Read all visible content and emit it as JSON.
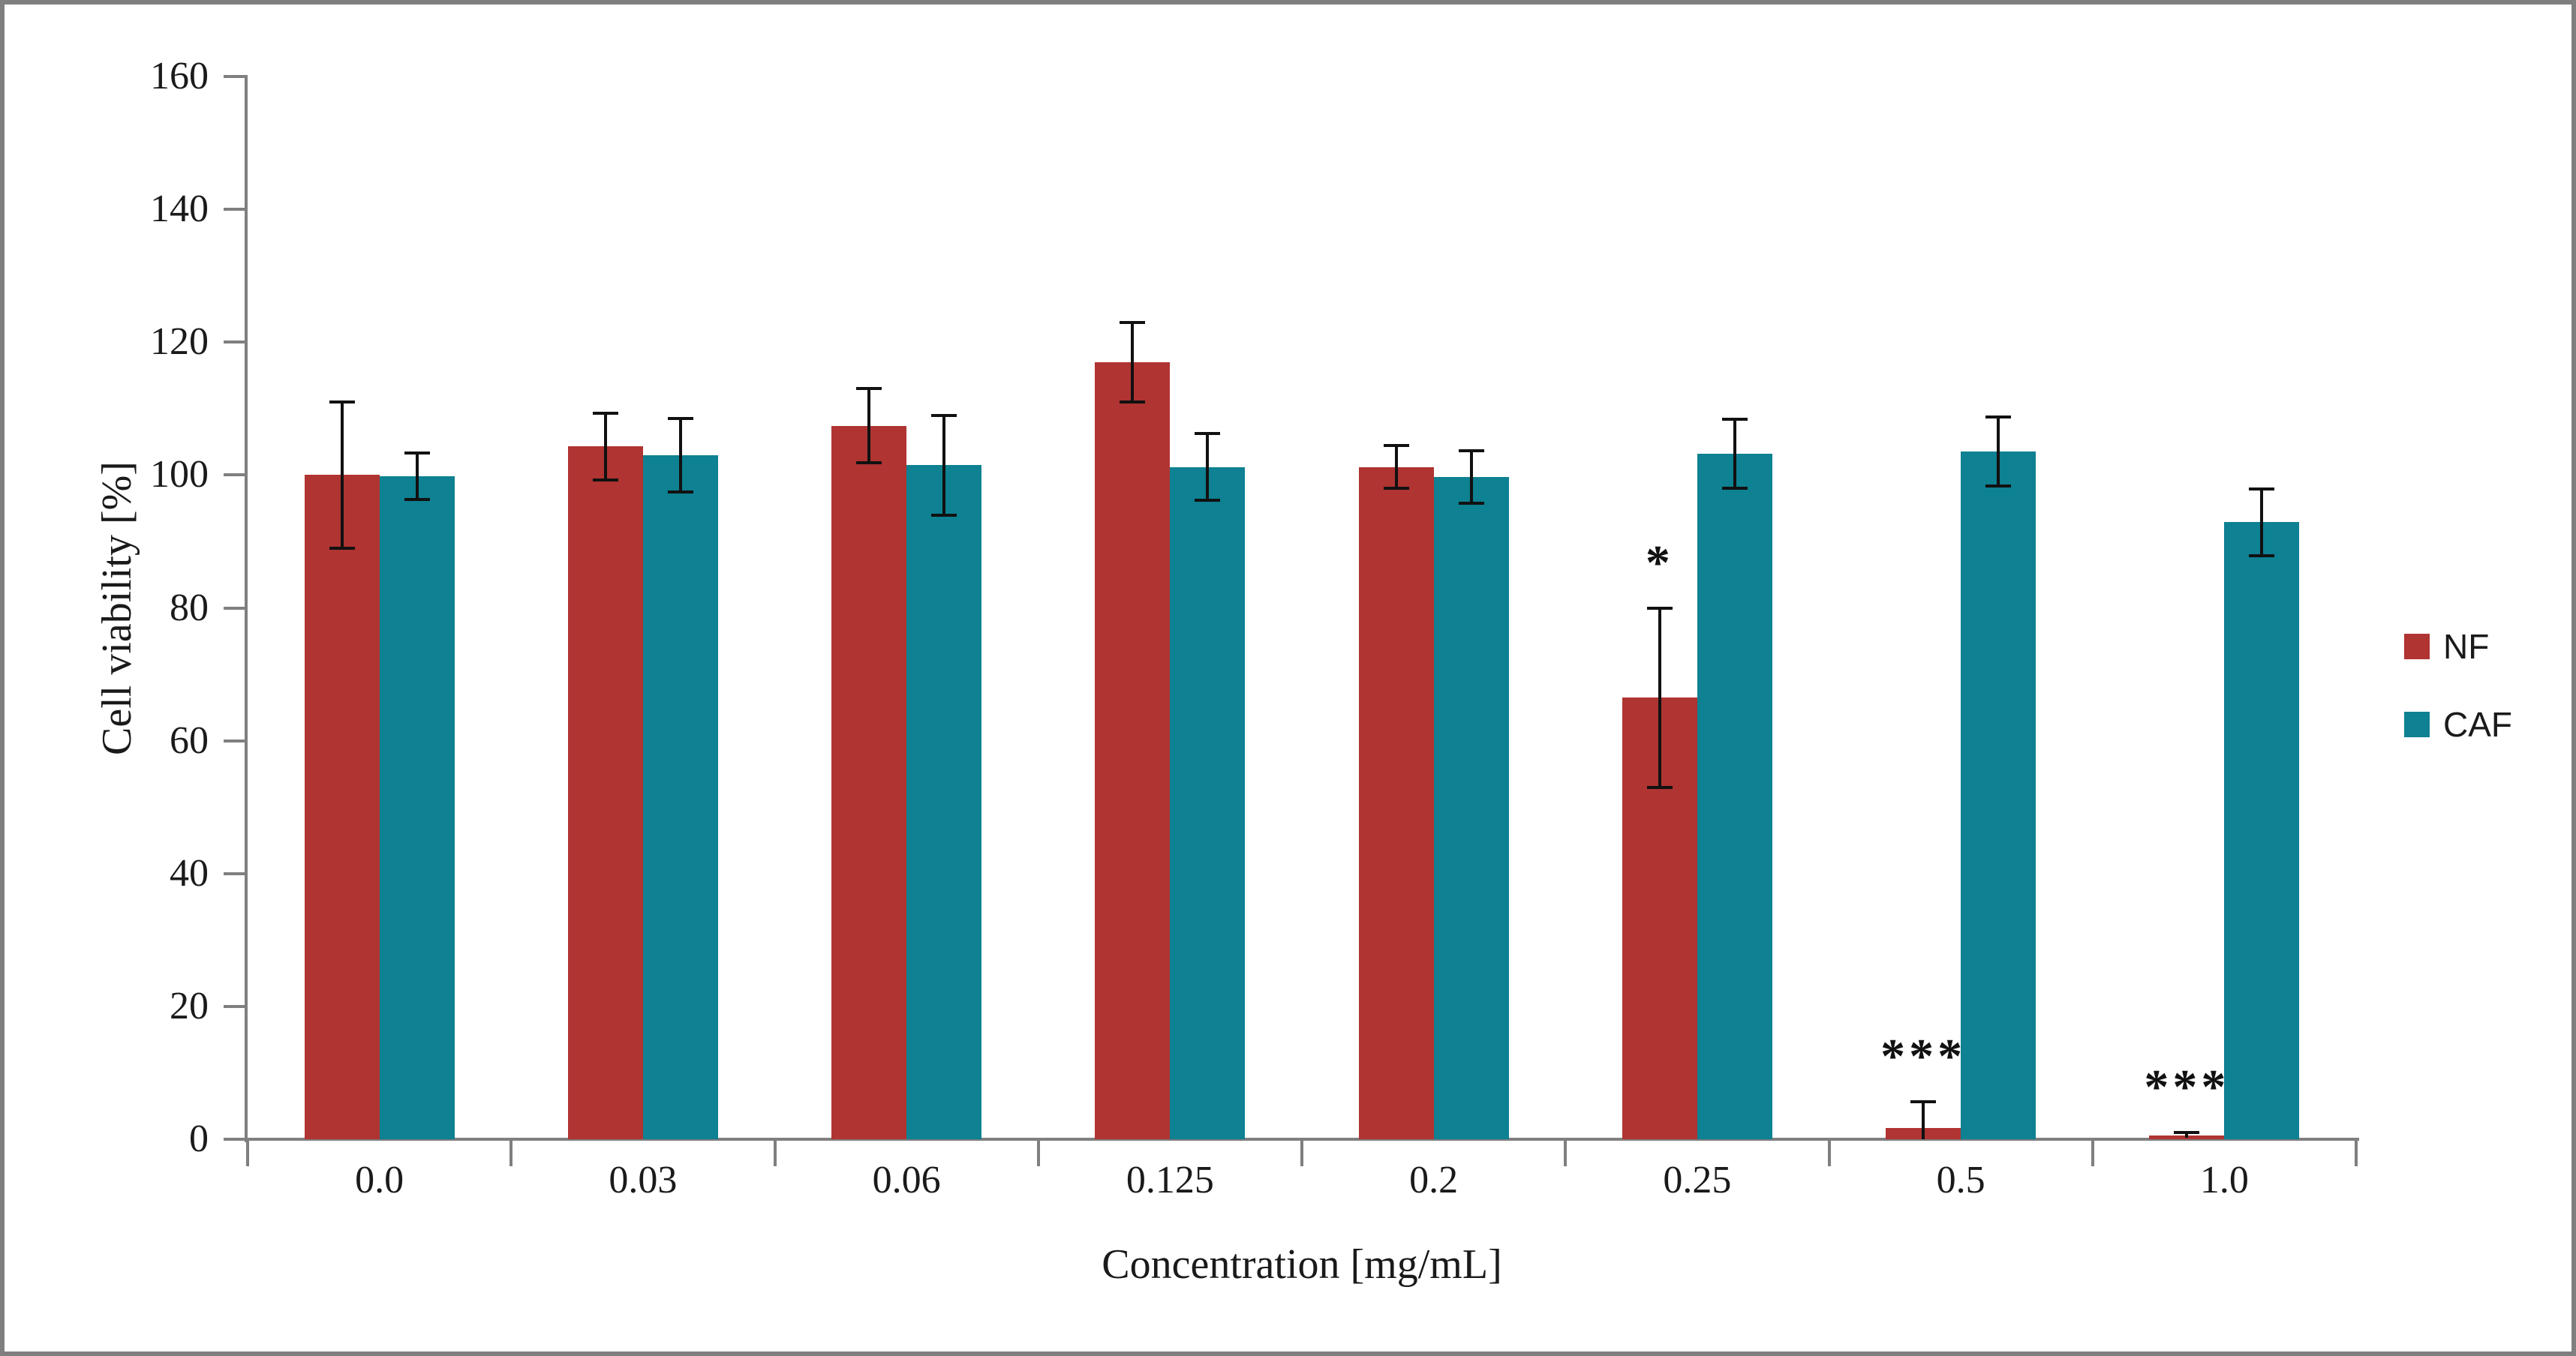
{
  "chart_data": {
    "type": "bar",
    "title": "",
    "xlabel": "Concentration [mg/mL]",
    "ylabel": "Cell viability [%]",
    "ylim": [
      0,
      160
    ],
    "yticks": [
      0,
      20,
      40,
      60,
      80,
      100,
      120,
      140,
      160
    ],
    "grid": false,
    "legend_position": "right",
    "categories": [
      "0.0",
      "0.03",
      "0.06",
      "0.125",
      "0.2",
      "0.25",
      "0.5",
      "1.0"
    ],
    "series": [
      {
        "name": "NF",
        "color": "#b03432",
        "values": [
          100.0,
          104.3,
          107.4,
          117.0,
          101.2,
          66.5,
          1.7,
          0.6
        ],
        "errors": [
          11.0,
          5.0,
          5.6,
          6.0,
          3.2,
          13.5,
          3.9,
          0.4
        ],
        "significance": [
          "",
          "",
          "",
          "",
          "",
          "*",
          "***",
          "***"
        ]
      },
      {
        "name": "CAF",
        "color": "#0e8192",
        "values": [
          99.8,
          103.0,
          101.5,
          101.2,
          99.7,
          103.2,
          103.5,
          92.9
        ],
        "errors": [
          3.5,
          5.5,
          7.5,
          5.0,
          4.0,
          5.2,
          5.2,
          5.0
        ],
        "significance": [
          "",
          "",
          "",
          "",
          "",
          "",
          "",
          ""
        ]
      }
    ],
    "error_bar_color": "#111111",
    "axis_line_color": "#7f7f7f",
    "frame_color": "#7f7f7f"
  }
}
